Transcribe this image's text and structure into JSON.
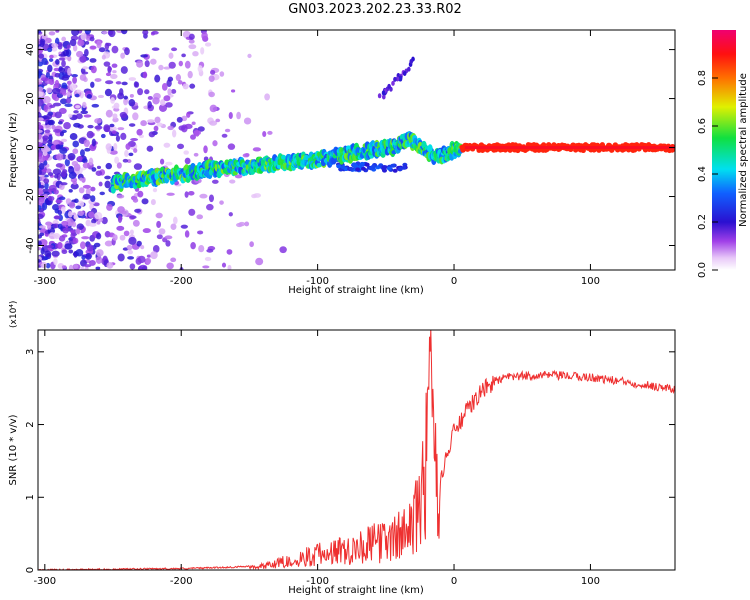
{
  "title": "GN03.2023.202.23.33.R02",
  "chart_data": [
    {
      "type": "heatmap",
      "xlabel": "Height of straight line (km)",
      "ylabel": "Frequency (Hz)",
      "xlim": [
        -305,
        162
      ],
      "ylim": [
        -50,
        48
      ],
      "xticks": [
        -300,
        -200,
        -100,
        0,
        100
      ],
      "xtick_labels": [
        "-300",
        "-200",
        "-100",
        "0",
        "100"
      ],
      "yticks": [
        -40,
        -20,
        0,
        20,
        40
      ],
      "ytick_labels": [
        "-40",
        "-20",
        "0",
        "20",
        "40"
      ],
      "colorbar": {
        "label": "Normalized spectral amplitude",
        "range": [
          0,
          1
        ],
        "ticks": [
          0.0,
          0.2,
          0.4,
          0.6,
          0.8
        ],
        "tick_labels": [
          "0.0",
          "0.2",
          "0.4",
          "0.6",
          "0.8"
        ]
      },
      "ridge": {
        "x": [
          -250,
          -220,
          -200,
          -180,
          -160,
          -140,
          -120,
          -100,
          -80,
          -60,
          -45,
          -35,
          -28,
          -22,
          -15,
          -8,
          0,
          10,
          50,
          100,
          160
        ],
        "y": [
          -15,
          -12,
          -11,
          -9,
          -8,
          -7,
          -6,
          -5,
          -3,
          -1,
          0,
          3,
          2,
          -1,
          -3,
          -3,
          -1,
          0,
          0,
          0,
          0
        ]
      }
    },
    {
      "type": "line",
      "xlabel": "Height of straight line (km)",
      "ylabel": "SNR (10 * v/v)",
      "y_multiplier": "(x10⁴)",
      "xlim": [
        -305,
        162
      ],
      "ylim": [
        0,
        3.3
      ],
      "xticks": [
        -300,
        -200,
        -100,
        0,
        100
      ],
      "xtick_labels": [
        "-300",
        "-200",
        "-100",
        "0",
        "100"
      ],
      "yticks": [
        0,
        1,
        2,
        3
      ],
      "ytick_labels": [
        "0",
        "1",
        "2",
        "3"
      ],
      "color": "#ee3030",
      "x": [
        -305,
        -250,
        -200,
        -160,
        -140,
        -120,
        -100,
        -80,
        -60,
        -45,
        -35,
        -28,
        -25,
        -22,
        -19,
        -17,
        -15,
        -12,
        -8,
        0,
        10,
        20,
        30,
        40,
        60,
        80,
        100,
        120,
        140,
        162
      ],
      "y": [
        0.0,
        0.01,
        0.02,
        0.04,
        0.07,
        0.15,
        0.25,
        0.33,
        0.42,
        0.5,
        0.6,
        0.85,
        1.3,
        1.5,
        2.1,
        3.2,
        2.0,
        0.9,
        1.4,
        1.9,
        2.2,
        2.45,
        2.6,
        2.65,
        2.68,
        2.67,
        2.65,
        2.6,
        2.55,
        2.48
      ]
    }
  ]
}
